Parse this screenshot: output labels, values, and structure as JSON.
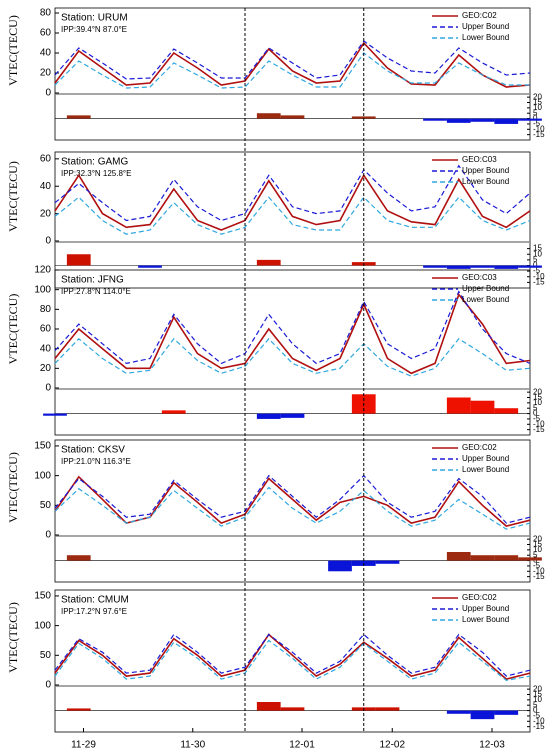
{
  "x_axis": {
    "x": [
      0,
      0.25,
      0.5,
      0.75,
      1,
      1.25,
      1.5,
      1.75,
      2,
      2.25,
      2.5,
      2.75,
      3,
      3.25,
      3.5,
      3.75,
      4,
      4.25,
      4.5,
      4.75,
      5
    ],
    "xlim": [
      0,
      5
    ],
    "xticks": [
      {
        "value": 0.3,
        "label": "11-29"
      },
      {
        "value": 1.45,
        "label": "11-30"
      },
      {
        "value": 2.6,
        "label": "12-01"
      },
      {
        "value": 3.55,
        "label": "12-02"
      },
      {
        "value": 4.6,
        "label": "12-03"
      }
    ],
    "vlines": [
      2.0,
      3.25
    ]
  },
  "chart_data": [
    {
      "type": "line",
      "title": "Station: URUM",
      "subtitle": "IPP:39.4°N 87.0°E",
      "y_label": "VTEC(TECU)",
      "ylim": [
        0,
        85
      ],
      "yticks": [
        0,
        20,
        40,
        60,
        80
      ],
      "series": [
        {
          "name": "GEO:C02",
          "color": "#b01010",
          "dash": "",
          "values": [
            10,
            42,
            25,
            8,
            10,
            40,
            25,
            8,
            12,
            44,
            22,
            10,
            12,
            50,
            25,
            9,
            8,
            38,
            18,
            6,
            8
          ]
        },
        {
          "name": "Upper Bound",
          "color": "#1a1ad6",
          "dash": "5,3",
          "values": [
            18,
            45,
            30,
            14,
            15,
            44,
            30,
            15,
            15,
            45,
            30,
            15,
            18,
            52,
            35,
            22,
            20,
            45,
            30,
            18,
            20
          ]
        },
        {
          "name": "Lower Bound",
          "color": "#2fa8e0",
          "dash": "5,3",
          "values": [
            8,
            32,
            18,
            5,
            6,
            30,
            18,
            5,
            6,
            32,
            18,
            6,
            6,
            40,
            22,
            10,
            10,
            30,
            18,
            8,
            8
          ]
        }
      ],
      "anomaly": {
        "values": [
          0,
          3,
          0,
          0,
          0,
          0,
          0,
          0,
          0,
          5,
          3,
          0,
          0,
          2,
          0,
          0,
          -2,
          -4,
          -3,
          -5,
          -2
        ],
        "positive_color": "#9b2a10",
        "negative_color": "#0a14d8",
        "ylim": [
          -20,
          22
        ],
        "yticks": [
          20,
          15,
          10,
          5,
          0,
          -5,
          -10,
          -15
        ]
      }
    },
    {
      "type": "line",
      "title": "Station: GAMG",
      "subtitle": "IPP:32.3°N 125.8°E",
      "y_label": "VTEC(TECU)",
      "ylim": [
        0,
        65
      ],
      "yticks": [
        0,
        20,
        40,
        60
      ],
      "series": [
        {
          "name": "GEO:C03",
          "color": "#b01010",
          "dash": "",
          "values": [
            22,
            48,
            20,
            10,
            12,
            38,
            15,
            8,
            15,
            44,
            18,
            12,
            15,
            48,
            22,
            14,
            12,
            45,
            18,
            10,
            22
          ]
        },
        {
          "name": "Upper Bound",
          "color": "#1a1ad6",
          "dash": "5,3",
          "values": [
            28,
            42,
            28,
            15,
            18,
            45,
            25,
            15,
            20,
            48,
            25,
            20,
            22,
            52,
            35,
            22,
            25,
            55,
            30,
            20,
            35
          ]
        },
        {
          "name": "Lower Bound",
          "color": "#2fa8e0",
          "dash": "5,3",
          "values": [
            18,
            32,
            15,
            5,
            8,
            28,
            12,
            5,
            10,
            32,
            12,
            8,
            8,
            32,
            15,
            10,
            10,
            32,
            15,
            8,
            15
          ]
        }
      ],
      "anomaly": {
        "values": [
          0,
          10,
          0,
          0,
          -2,
          0,
          0,
          0,
          0,
          5,
          0,
          0,
          0,
          3,
          0,
          0,
          -2,
          -3,
          -2,
          -3,
          -2
        ],
        "positive_color": "#cc1100",
        "negative_color": "#0a14d8",
        "ylim": [
          -20,
          20
        ],
        "yticks": [
          15,
          10,
          5,
          0,
          -5,
          -10,
          -15
        ]
      }
    },
    {
      "type": "line",
      "title": "Station: JFNG",
      "subtitle": "IPP:27.8°N 114.0°E",
      "y_label": "VTEC(TECU)",
      "ylim": [
        0,
        120
      ],
      "yticks": [
        0,
        20,
        40,
        60,
        80,
        100,
        120
      ],
      "series": [
        {
          "name": "GEO:C03",
          "color": "#b01010",
          "dash": "",
          "values": [
            30,
            60,
            40,
            20,
            20,
            72,
            35,
            20,
            25,
            60,
            30,
            18,
            30,
            85,
            30,
            15,
            25,
            95,
            65,
            25,
            28
          ]
        },
        {
          "name": "Upper Bound",
          "color": "#1a1ad6",
          "dash": "5,3",
          "values": [
            38,
            65,
            45,
            25,
            30,
            75,
            45,
            25,
            35,
            75,
            45,
            25,
            35,
            88,
            45,
            30,
            40,
            98,
            60,
            35,
            25
          ]
        },
        {
          "name": "Lower Bound",
          "color": "#2fa8e0",
          "dash": "5,3",
          "values": [
            25,
            50,
            30,
            15,
            18,
            50,
            28,
            15,
            22,
            50,
            25,
            15,
            20,
            45,
            22,
            12,
            20,
            50,
            35,
            18,
            20
          ]
        }
      ],
      "anomaly": {
        "values": [
          -2,
          0,
          0,
          0,
          0,
          3,
          0,
          0,
          0,
          -5,
          -4,
          0,
          0,
          18,
          0,
          0,
          0,
          15,
          12,
          5,
          0
        ],
        "positive_color": "#ee1100",
        "negative_color": "#0a14d8",
        "ylim": [
          -20,
          22
        ],
        "yticks": [
          20,
          15,
          10,
          5,
          0,
          -5,
          -10,
          -15
        ]
      }
    },
    {
      "type": "line",
      "title": "Station: CKSV",
      "subtitle": "IPP:21.0°N 116.3°E",
      "y_label": "VTEC(TECU)",
      "ylim": [
        0,
        160
      ],
      "yticks": [
        0,
        50,
        100,
        150
      ],
      "series": [
        {
          "name": "GEO:C02",
          "color": "#b01010",
          "dash": "",
          "values": [
            40,
            98,
            60,
            20,
            30,
            88,
            55,
            20,
            35,
            95,
            60,
            25,
            55,
            65,
            50,
            20,
            30,
            90,
            50,
            15,
            25
          ]
        },
        {
          "name": "Upper Bound",
          "color": "#1a1ad6",
          "dash": "5,3",
          "values": [
            45,
            95,
            65,
            30,
            35,
            92,
            60,
            30,
            40,
            100,
            65,
            30,
            60,
            100,
            55,
            30,
            40,
            95,
            65,
            20,
            30
          ]
        },
        {
          "name": "Lower Bound",
          "color": "#2fa8e0",
          "dash": "5,3",
          "values": [
            40,
            78,
            50,
            20,
            30,
            75,
            45,
            15,
            30,
            80,
            45,
            20,
            40,
            75,
            40,
            15,
            25,
            60,
            35,
            10,
            20
          ]
        }
      ],
      "anomaly": {
        "values": [
          0,
          5,
          0,
          0,
          0,
          0,
          0,
          0,
          0,
          0,
          0,
          0,
          -10,
          -5,
          -3,
          0,
          0,
          8,
          5,
          5,
          3
        ],
        "positive_color": "#9b2a10",
        "negative_color": "#0a14d8",
        "ylim": [
          -20,
          22
        ],
        "yticks": [
          20,
          15,
          10,
          5,
          0,
          -5,
          -10,
          -15
        ]
      }
    },
    {
      "type": "line",
      "title": "Station: CMUM",
      "subtitle": "IPP:17.2°N 97.6°E",
      "y_label": "VTEC(TECU)",
      "ylim": [
        0,
        160
      ],
      "yticks": [
        0,
        50,
        100,
        150
      ],
      "series": [
        {
          "name": "GEO:C02",
          "color": "#b01010",
          "dash": "",
          "values": [
            20,
            75,
            50,
            15,
            20,
            78,
            50,
            15,
            25,
            85,
            50,
            15,
            35,
            72,
            45,
            15,
            25,
            80,
            45,
            10,
            20
          ]
        },
        {
          "name": "Upper Bound",
          "color": "#1a1ad6",
          "dash": "5,3",
          "values": [
            25,
            78,
            55,
            20,
            25,
            85,
            55,
            20,
            30,
            85,
            55,
            20,
            40,
            85,
            50,
            20,
            30,
            85,
            55,
            15,
            25
          ]
        },
        {
          "name": "Lower Bound",
          "color": "#2fa8e0",
          "dash": "5,3",
          "values": [
            15,
            70,
            45,
            10,
            15,
            72,
            45,
            10,
            20,
            75,
            45,
            10,
            30,
            70,
            40,
            10,
            20,
            72,
            40,
            8,
            15
          ]
        }
      ],
      "anomaly": {
        "values": [
          0,
          2,
          0,
          0,
          0,
          0,
          0,
          0,
          0,
          8,
          3,
          0,
          0,
          3,
          3,
          0,
          0,
          -3,
          -8,
          -4,
          0
        ],
        "positive_color": "#cc1100",
        "negative_color": "#0a14d8",
        "ylim": [
          -20,
          22
        ],
        "yticks": [
          20,
          15,
          10,
          5,
          0,
          -5,
          -10,
          -15
        ]
      }
    }
  ]
}
